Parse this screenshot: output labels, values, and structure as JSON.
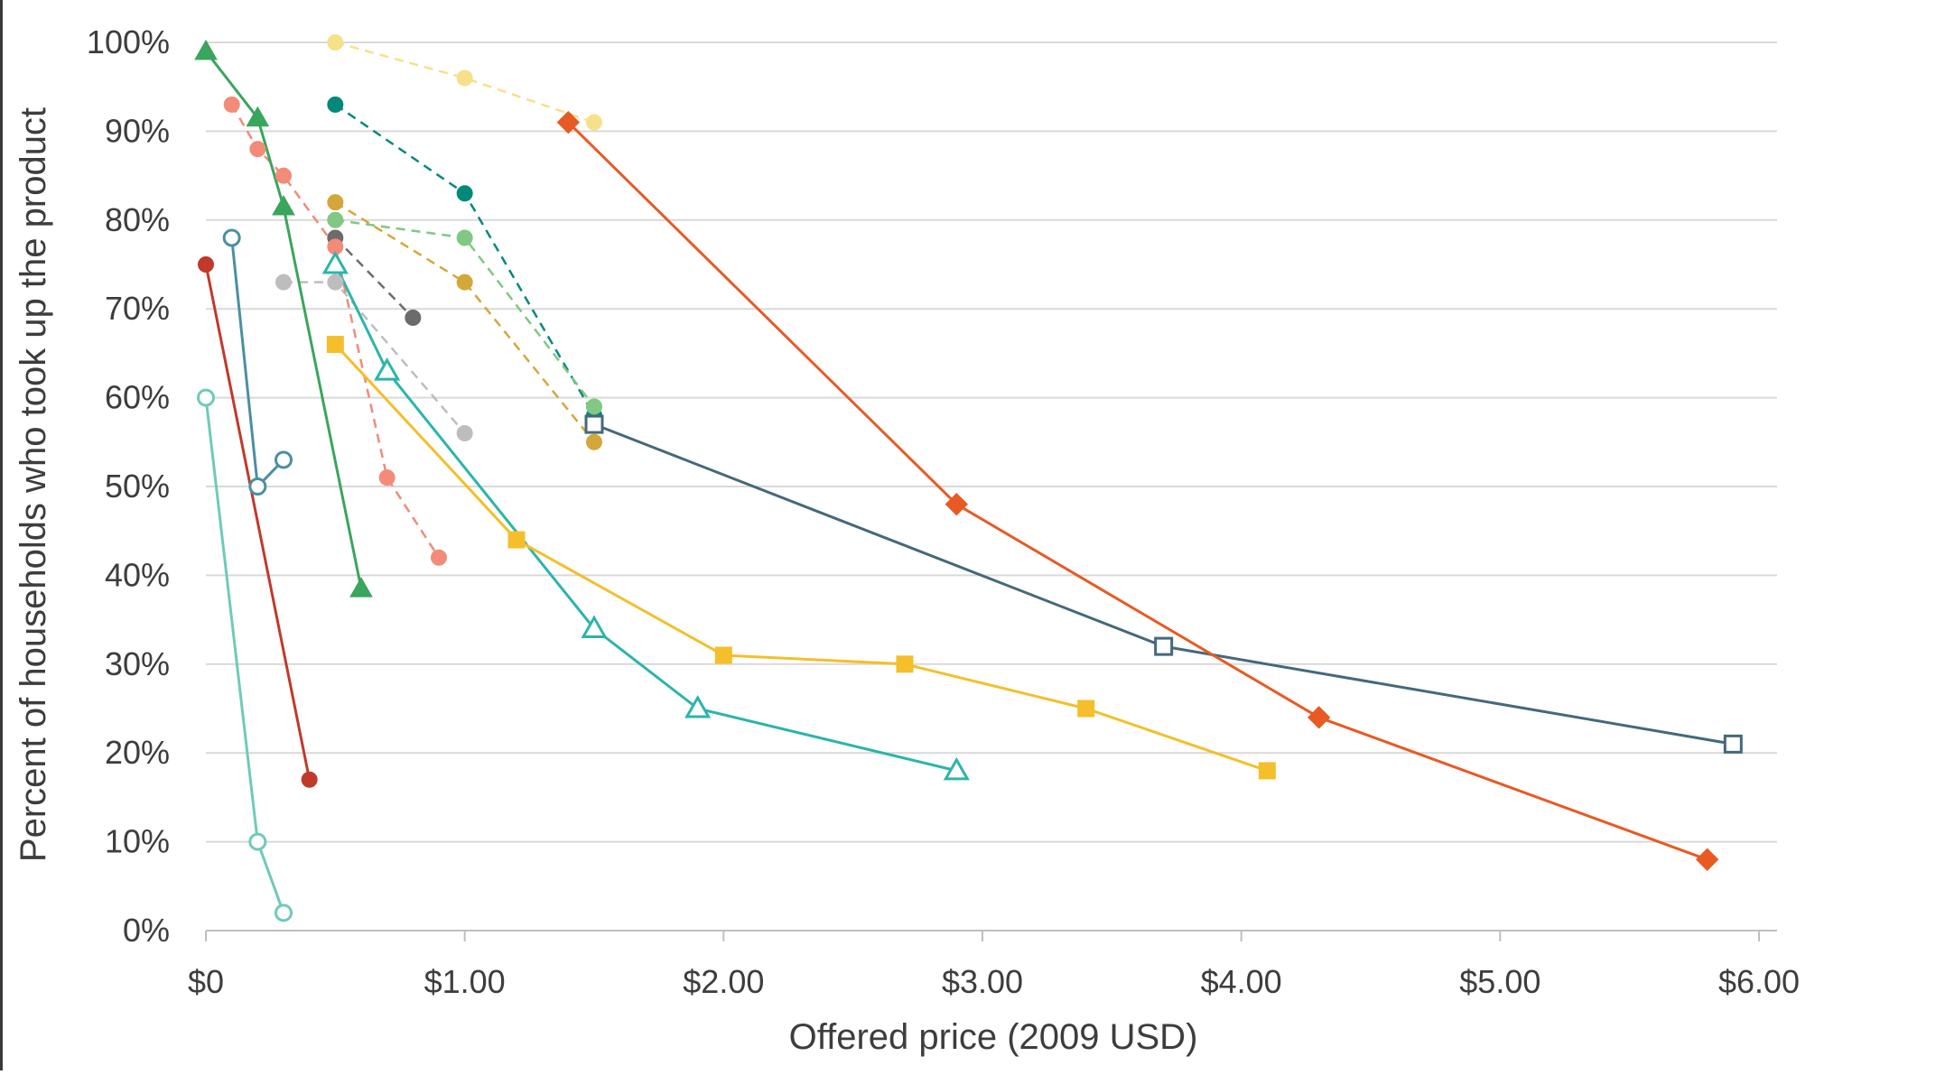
{
  "chart_data": {
    "type": "scatter",
    "title": "",
    "xlabel": "Offered price (2009 USD)",
    "ylabel": "Percent of households who took up the product",
    "xlim": [
      0,
      6
    ],
    "ylim": [
      0,
      100
    ],
    "x_ticks": [
      0,
      1,
      2,
      3,
      4,
      5,
      6
    ],
    "x_tick_labels": [
      "$0",
      "$1.00",
      "$2.00",
      "$3.00",
      "$4.00",
      "$5.00",
      "$6.00"
    ],
    "y_ticks": [
      0,
      10,
      20,
      30,
      40,
      50,
      60,
      70,
      80,
      90,
      100
    ],
    "y_tick_labels": [
      "0%",
      "10%",
      "20%",
      "30%",
      "40%",
      "50%",
      "60%",
      "70%",
      "80%",
      "90%",
      "100%"
    ],
    "grid": "horizontal",
    "legend": "none",
    "series": [
      {
        "color": "#f7e08a",
        "marker": "circle",
        "line": "dashed",
        "points": [
          [
            0.5,
            100
          ],
          [
            1.0,
            96
          ],
          [
            1.5,
            91
          ]
        ]
      },
      {
        "color": "#00897b",
        "marker": "circle",
        "line": "dashed",
        "points": [
          [
            0.5,
            93
          ],
          [
            1.0,
            83
          ],
          [
            1.5,
            58
          ]
        ]
      },
      {
        "color": "#80c883",
        "marker": "circle",
        "line": "dashed",
        "points": [
          [
            0.5,
            80
          ],
          [
            1.0,
            78
          ],
          [
            1.5,
            59
          ]
        ]
      },
      {
        "color": "#d4a73a",
        "marker": "circle",
        "line": "dashed",
        "points": [
          [
            0.5,
            82
          ],
          [
            1.0,
            73
          ],
          [
            1.5,
            55
          ]
        ]
      },
      {
        "color": "#6b6b6b",
        "marker": "circle",
        "line": "dashed",
        "points": [
          [
            0.5,
            78
          ],
          [
            0.8,
            69
          ]
        ]
      },
      {
        "color": "#bdbdbd",
        "marker": "circle",
        "line": "dashed",
        "points": [
          [
            0.3,
            73
          ],
          [
            0.5,
            73
          ],
          [
            1.0,
            56
          ]
        ]
      },
      {
        "color": "#f28b78",
        "marker": "circle",
        "line": "dashed",
        "points": [
          [
            0.1,
            93
          ],
          [
            0.2,
            88
          ],
          [
            0.3,
            85
          ],
          [
            0.5,
            77
          ],
          [
            0.7,
            51
          ],
          [
            0.9,
            42
          ]
        ]
      },
      {
        "color": "#3aa55d",
        "marker": "triangle",
        "line": "solid",
        "points": [
          [
            0.0,
            99
          ],
          [
            0.2,
            91.5
          ],
          [
            0.3,
            81.5
          ],
          [
            0.6,
            38.5
          ]
        ]
      },
      {
        "color": "#c0392b",
        "marker": "circle",
        "line": "solid",
        "points": [
          [
            0.0,
            75
          ],
          [
            0.4,
            17
          ]
        ]
      },
      {
        "color": "#4a8fa3",
        "marker": "circle-open",
        "line": "solid",
        "points": [
          [
            0.1,
            78
          ],
          [
            0.2,
            50
          ],
          [
            0.3,
            53
          ]
        ]
      },
      {
        "color": "#6fcab8",
        "marker": "circle-open",
        "line": "solid",
        "points": [
          [
            0.0,
            60
          ],
          [
            0.2,
            10
          ],
          [
            0.3,
            2
          ]
        ]
      },
      {
        "color": "#2bb5ab",
        "marker": "triangle-open",
        "line": "solid",
        "points": [
          [
            0.5,
            75
          ],
          [
            0.7,
            63
          ],
          [
            1.5,
            34
          ],
          [
            1.9,
            25
          ],
          [
            2.9,
            18
          ]
        ]
      },
      {
        "color": "#f4bf2a",
        "marker": "square",
        "line": "solid",
        "points": [
          [
            0.5,
            66
          ],
          [
            1.2,
            44
          ],
          [
            2.0,
            31
          ],
          [
            2.7,
            30
          ],
          [
            3.4,
            25
          ],
          [
            4.1,
            18
          ]
        ]
      },
      {
        "color": "#44697a",
        "marker": "square-open",
        "line": "solid",
        "points": [
          [
            1.5,
            57
          ],
          [
            3.7,
            32
          ],
          [
            5.9,
            21
          ]
        ]
      },
      {
        "color": "#e85a24",
        "marker": "diamond",
        "line": "solid",
        "points": [
          [
            1.4,
            91
          ],
          [
            2.9,
            48
          ],
          [
            4.3,
            24
          ],
          [
            5.8,
            8
          ]
        ]
      }
    ]
  }
}
